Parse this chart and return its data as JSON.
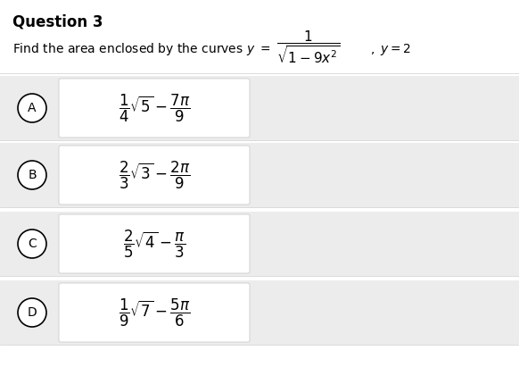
{
  "title": "Question 3",
  "bg_color": "#ffffff",
  "option_area_bg": "#e8e8e8",
  "option_box_bg": "#f5f5f5",
  "title_fontsize": 12,
  "text_fontsize": 10,
  "option_fontsize": 11,
  "options": [
    {
      "label": "A",
      "math": "\\dfrac{1}{4}\\sqrt{5}-\\dfrac{7\\pi}{9}"
    },
    {
      "label": "B",
      "math": "\\dfrac{2}{3}\\sqrt{3}-\\dfrac{2\\pi}{9}"
    },
    {
      "label": "C",
      "math": "\\dfrac{2}{5}\\sqrt{4}-\\dfrac{\\pi}{3}"
    },
    {
      "label": "D",
      "math": "\\dfrac{1}{9}\\sqrt{7}-\\dfrac{5\\pi}{6}"
    }
  ]
}
